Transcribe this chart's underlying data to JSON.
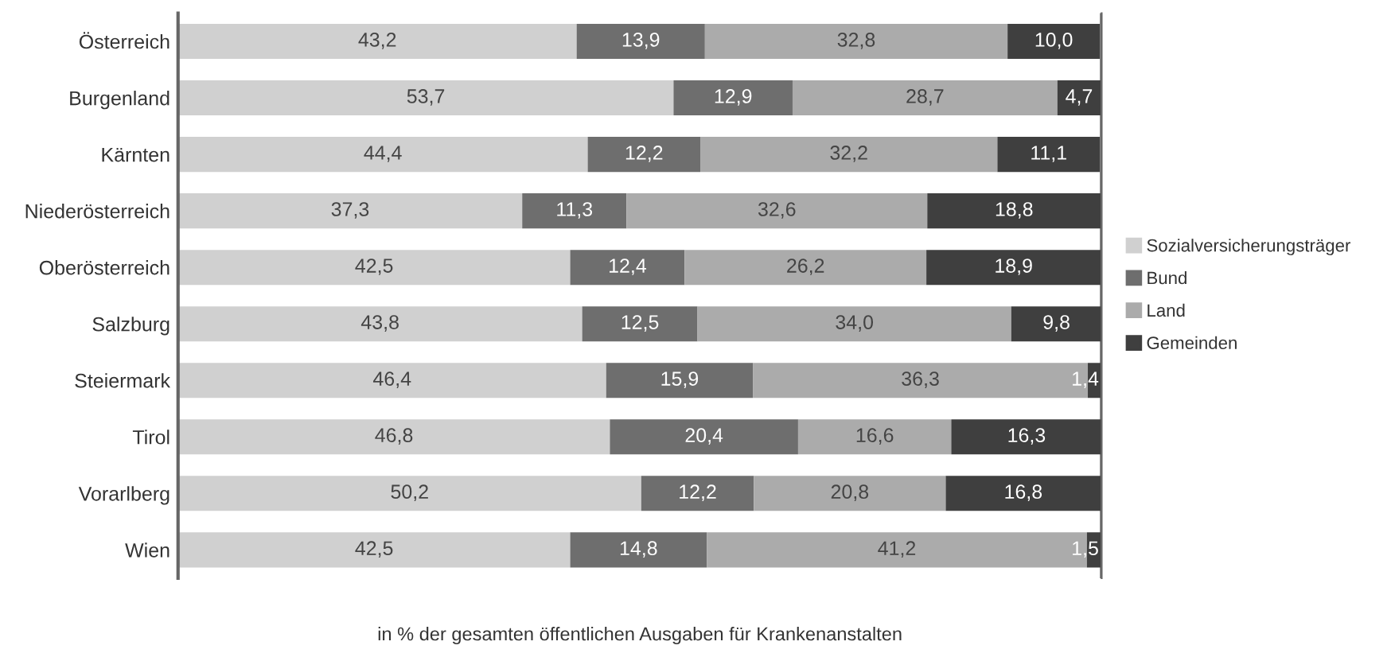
{
  "chart_data": {
    "type": "bar",
    "orientation": "horizontal",
    "stacked": true,
    "xlabel": "in % der gesamten öffentlichen Ausgaben für Krankenanstalten",
    "categories": [
      "Österreich",
      "Burgenland",
      "Kärnten",
      "Niederösterreich",
      "Oberösterreich",
      "Salzburg",
      "Steiermark",
      "Tirol",
      "Vorarlberg",
      "Wien"
    ],
    "series": [
      {
        "name": "Sozialversicherungsträger",
        "color": "#d0d0d0",
        "values": [
          43.2,
          53.7,
          44.4,
          37.3,
          42.5,
          43.8,
          46.4,
          46.8,
          50.2,
          42.5
        ],
        "value_labels": [
          "43,2",
          "53,7",
          "44,4",
          "37,3",
          "42,5",
          "43,8",
          "46,4",
          "46,8",
          "50,2",
          "42,5"
        ]
      },
      {
        "name": "Bund",
        "color": "#6e6e6e",
        "values": [
          13.9,
          12.9,
          12.2,
          11.3,
          12.4,
          12.5,
          15.9,
          20.4,
          12.2,
          14.8
        ],
        "value_labels": [
          "13,9",
          "12,9",
          "12,2",
          "11,3",
          "12,4",
          "12,5",
          "15,9",
          "20,4",
          "12,2",
          "14,8"
        ]
      },
      {
        "name": "Land",
        "color": "#ababab",
        "values": [
          32.8,
          28.7,
          32.2,
          32.6,
          26.2,
          34.0,
          36.3,
          16.6,
          20.8,
          41.2
        ],
        "value_labels": [
          "32,8",
          "28,7",
          "32,2",
          "32,6",
          "26,2",
          "34,0",
          "36,3",
          "16,6",
          "20,8",
          "41,2"
        ]
      },
      {
        "name": "Gemeinden",
        "color": "#3f3f3f",
        "values": [
          10.0,
          4.7,
          11.1,
          18.8,
          18.9,
          9.8,
          1.4,
          16.3,
          16.8,
          1.5
        ],
        "value_labels": [
          "10,0",
          "4,7",
          "11,1",
          "18,8",
          "18,9",
          "9,8",
          "1,4",
          "16,3",
          "16,8",
          "1,5"
        ]
      }
    ],
    "grid": "x",
    "legend": "right"
  }
}
